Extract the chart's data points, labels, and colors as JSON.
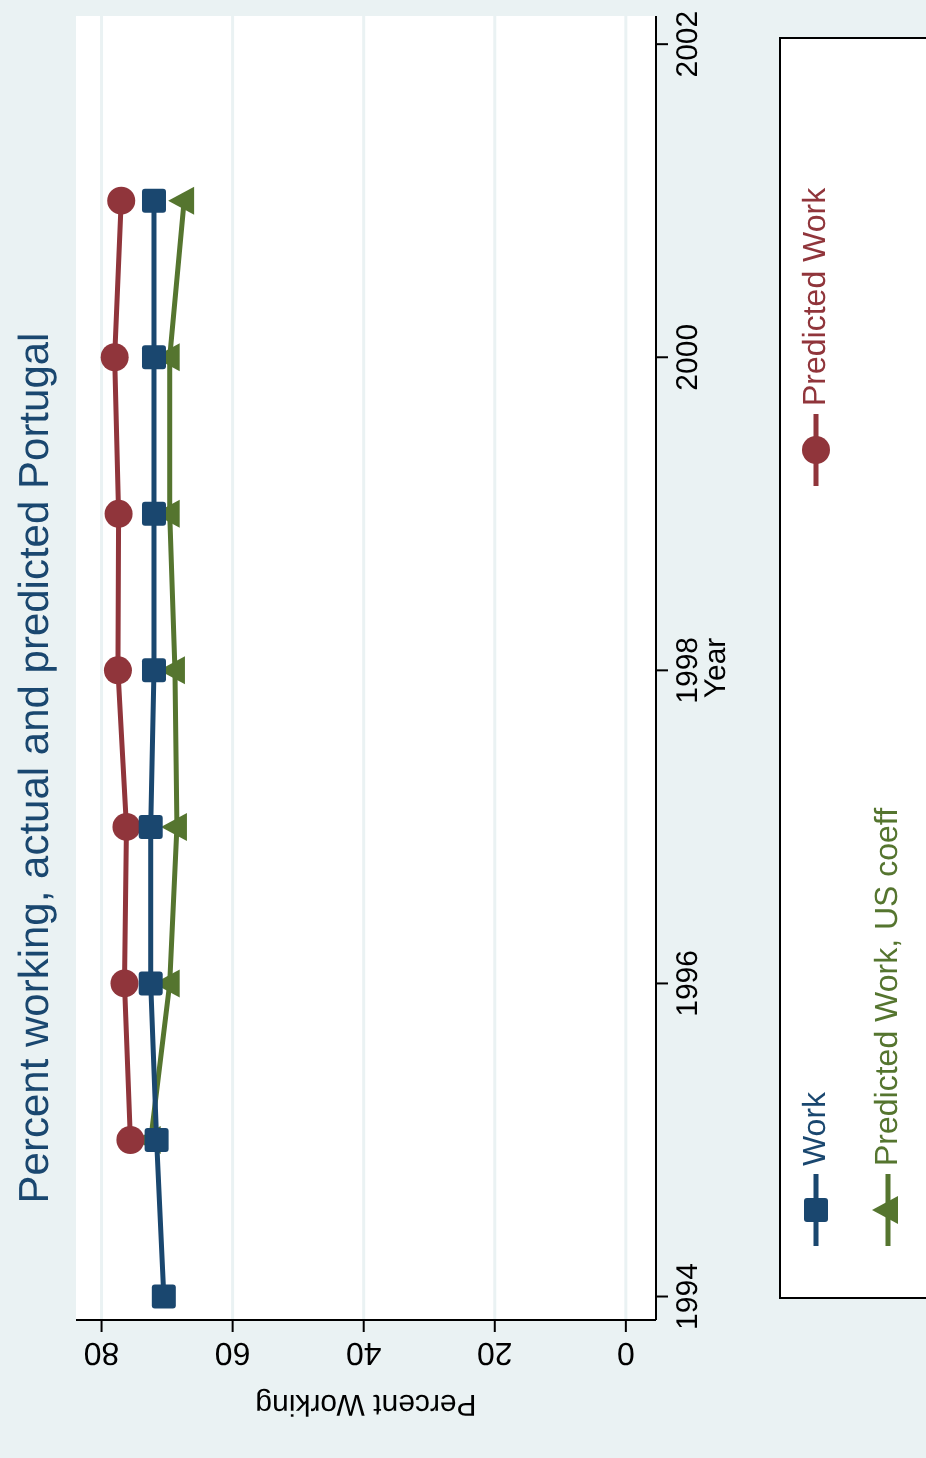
{
  "chart_data": {
    "type": "line",
    "title": "Percent working, actual and predicted Portugal",
    "xlabel": "Percent Working",
    "ylabel": "Year",
    "xlim": [
      83.9,
      -4.6
    ],
    "xticks": [
      80,
      60,
      40,
      20,
      0
    ],
    "ylim": [
      1993.85,
      2002.18
    ],
    "yticks": [
      1994,
      1996,
      1998,
      2000,
      2002
    ],
    "grid": "x",
    "legend": "right",
    "series": [
      {
        "name": "Work",
        "color": "#1a476f",
        "marker": "square",
        "x": [
          70.5,
          71.6,
          72.5,
          72.5,
          72.0,
          72.0,
          72.0,
          72.0
        ],
        "values": [
          1994,
          1995,
          1996,
          1997,
          1998,
          1999,
          2000,
          2001
        ]
      },
      {
        "name": "Predicted Work",
        "color": "#90353b",
        "marker": "circle",
        "x": [
          75.6,
          76.5,
          76.2,
          77.5,
          77.4,
          78.0,
          77.0
        ],
        "values": [
          1995,
          1996,
          1997,
          1998,
          1999,
          2000,
          2001
        ]
      },
      {
        "name": "Predicted Work, US coeff",
        "color": "#55752f",
        "marker": "triangle",
        "x": [
          72.5,
          69.6,
          68.5,
          68.8,
          69.6,
          69.6,
          67.4
        ],
        "values": [
          1995,
          1996,
          1997,
          1998,
          1999,
          2000,
          2001
        ]
      }
    ]
  }
}
